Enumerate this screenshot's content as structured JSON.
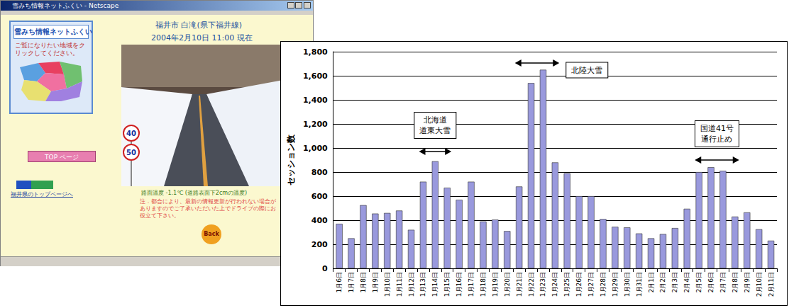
{
  "screenshot": {
    "window_title": "雪みち情報ネットふくい - Netscape",
    "sidebar": {
      "logo": "雪みち情報ネットふくい",
      "prompt": "ご覧になりたい地域をクリックしてください。",
      "top_button": "TOP ページ",
      "home_link": "福井県のトップページへ"
    },
    "header": {
      "location": "福井市 白滝(県下福井線)",
      "timestamp": "2004年2月10日 11:00 現在"
    },
    "photo": {
      "signs": [
        "40",
        "50"
      ]
    },
    "road_temperature": "路面温度 -1.1℃ (道路表面下2cmの温度)",
    "note": "注．都合により、最新の情報更新が行われない場合がありますのでご了承いただいた上でドライブの際にお役立て下さい。",
    "back_button": "Back"
  },
  "chart_data": {
    "type": "bar",
    "y_label": "セッション数",
    "categories": [
      "1月6日",
      "1月7日",
      "1月8日",
      "1月9日",
      "1月10日",
      "1月11日",
      "1月12日",
      "1月13日",
      "1月14日",
      "1月15日",
      "1月16日",
      "1月17日",
      "1月18日",
      "1月19日",
      "1月20日",
      "1月21日",
      "1月22日",
      "1月23日",
      "1月24日",
      "1月25日",
      "1月26日",
      "1月27日",
      "1月28日",
      "1月29日",
      "1月30日",
      "1月31日",
      "2月1日",
      "2月2日",
      "2月3日",
      "2月4日",
      "2月5日",
      "2月6日",
      "2月7日",
      "2月8日",
      "2月9日",
      "2月10日",
      "2月11日"
    ],
    "values": [
      370,
      250,
      525,
      455,
      460,
      480,
      320,
      720,
      890,
      670,
      570,
      720,
      390,
      405,
      310,
      680,
      1540,
      1650,
      880,
      790,
      600,
      600,
      410,
      345,
      340,
      290,
      250,
      285,
      335,
      495,
      800,
      840,
      810,
      430,
      465,
      325,
      230
    ],
    "color": "#9999dd",
    "ylim": [
      0,
      1800
    ],
    "yticks": [
      0,
      200,
      400,
      600,
      800,
      1000,
      1200,
      1400,
      1600,
      1800
    ],
    "grid": true,
    "annotations": [
      {
        "text": "北海道\n道東大雪",
        "from": "1月13日",
        "to": "1月15日"
      },
      {
        "text": "北陸大雪",
        "from": "1月21日",
        "to": "1月24日"
      },
      {
        "text": "国道41号\n通行止め",
        "from": "2月5日",
        "to": "2月8日"
      }
    ]
  }
}
